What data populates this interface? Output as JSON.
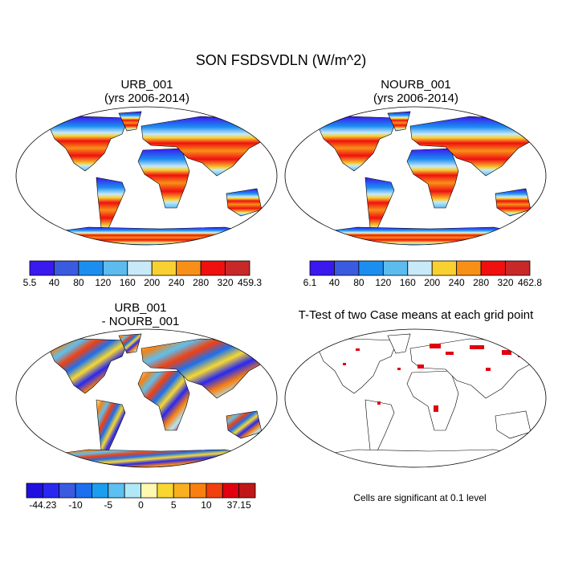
{
  "title": "SON FSDSVDLN (W/m^2)",
  "panels": [
    {
      "title": "URB_001",
      "subtitle": "(yrs 2006-2014)",
      "colorbar": {
        "colors": [
          "#3a18f0",
          "#3a5be0",
          "#1c8ef0",
          "#5cbcf0",
          "#c8eaf8",
          "#f8d030",
          "#f89018",
          "#f01010",
          "#c82828"
        ],
        "labels": [
          "5.5",
          "40",
          "80",
          "120",
          "160",
          "200",
          "240",
          "280",
          "320",
          "459.3"
        ]
      }
    },
    {
      "title": "NOURB_001",
      "subtitle": "(yrs 2006-2014)",
      "colorbar": {
        "colors": [
          "#3a18f0",
          "#3a5be0",
          "#1c8ef0",
          "#5cbcf0",
          "#c8eaf8",
          "#f8d030",
          "#f89018",
          "#f01010",
          "#c82828"
        ],
        "labels": [
          "6.1",
          "40",
          "80",
          "120",
          "160",
          "200",
          "240",
          "280",
          "320",
          "462.8"
        ]
      }
    },
    {
      "title": "URB_001",
      "subtitle": "- NOURB_001",
      "colorbar": {
        "colors": [
          "#2010e0",
          "#2828f0",
          "#3a5be0",
          "#1c70f0",
          "#1c9ef0",
          "#5cc0f0",
          "#b0e8f8",
          "#fff8b0",
          "#f8d830",
          "#f8b020",
          "#f88010",
          "#f04010",
          "#e00010",
          "#c01818"
        ],
        "labels": [
          "-44.23",
          "-10",
          "-5",
          "0",
          "5",
          "10",
          "37.15"
        ]
      }
    },
    {
      "title": "T-Test of two Case means at each grid point",
      "note": "Cells are significant at 0.1 level"
    }
  ]
}
